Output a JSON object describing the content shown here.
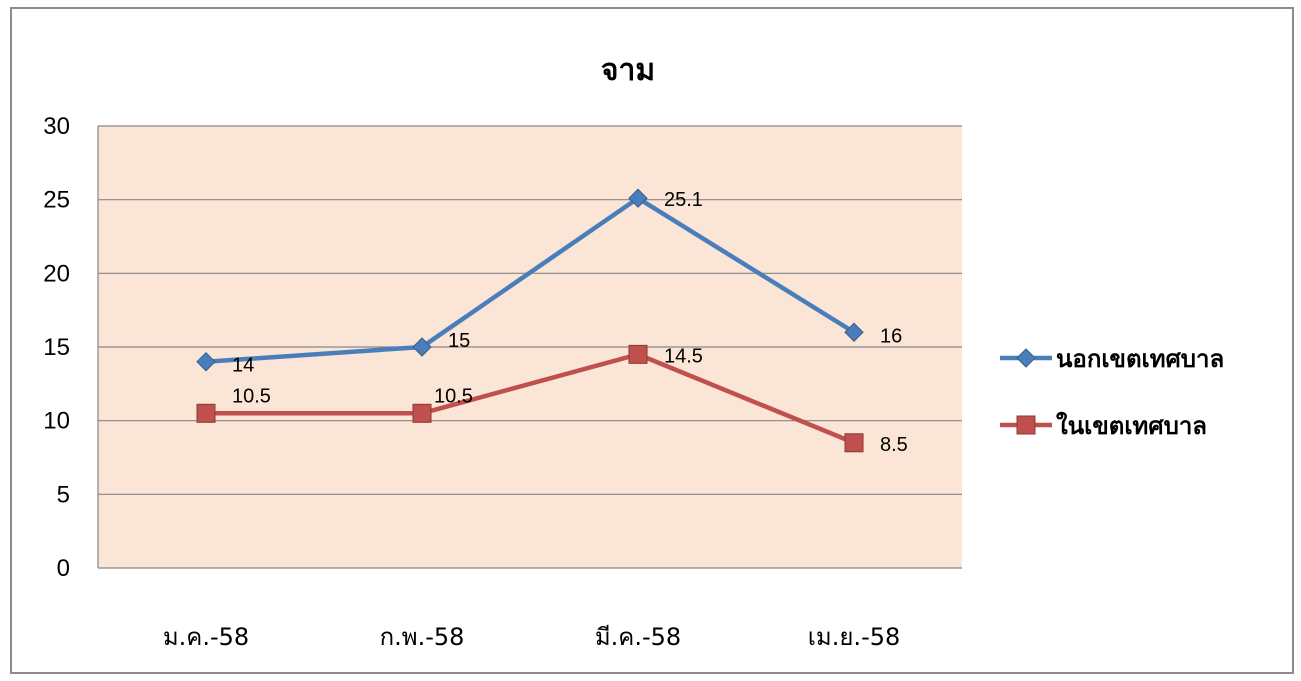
{
  "chart_data": {
    "type": "line",
    "title": "จาม",
    "categories": [
      "ม.ค.-58",
      "ก.พ.-58",
      "มี.ค.-58",
      "เม.ย.-58"
    ],
    "ylim": [
      0,
      30
    ],
    "yticks": [
      "0",
      "5",
      "10",
      "15",
      "20",
      "25",
      "30"
    ],
    "grid": true,
    "legend_position": "right",
    "plot_background": "#fbe5d6",
    "series": [
      {
        "name": "นอกเขตเทศบาล",
        "values": [
          14,
          15,
          25.1,
          16
        ],
        "labels": [
          "14",
          "15",
          "25.1",
          "16"
        ],
        "color": "#4a7ebb",
        "marker": "diamond"
      },
      {
        "name": "ในเขตเทศบาล",
        "values": [
          10.5,
          10.5,
          14.5,
          8.5
        ],
        "labels": [
          "10.5",
          "10.5",
          "14.5",
          "8.5"
        ],
        "color": "#c0504d",
        "marker": "square"
      }
    ]
  }
}
